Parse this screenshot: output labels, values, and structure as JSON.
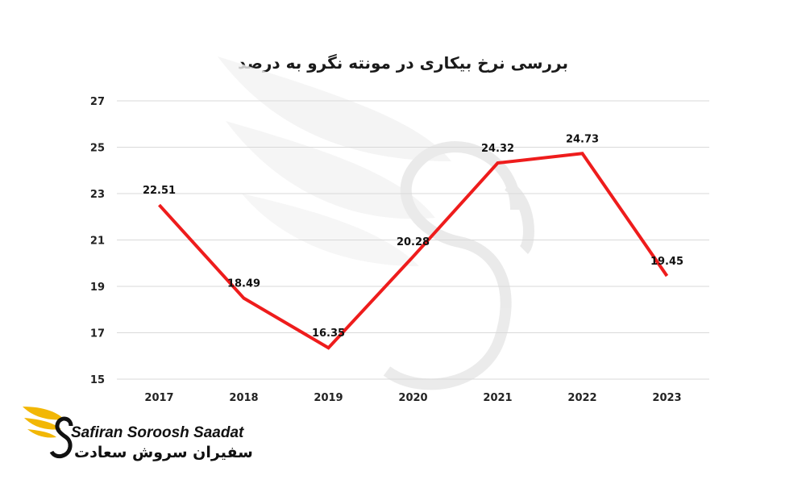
{
  "chart_data": {
    "type": "line",
    "title": "بررسی نرخ بیکاری در مونته نگرو به درصد",
    "categories": [
      "2017",
      "2018",
      "2019",
      "2020",
      "2021",
      "2022",
      "2023"
    ],
    "series": [
      {
        "values": [
          22.51,
          18.49,
          16.35,
          20.28,
          24.32,
          24.73,
          19.45
        ],
        "color": "#ee1c1c"
      }
    ],
    "y_ticks": [
      "15",
      "17",
      "19",
      "21",
      "23",
      "25",
      "27"
    ],
    "ylim": [
      15,
      27
    ],
    "grid": true,
    "data_labels": true
  },
  "logo": {
    "brand_en": "Safiran Soroosh Saadat",
    "brand_fa": "سفیران سروش سعادت",
    "accent": "#f2b705"
  }
}
